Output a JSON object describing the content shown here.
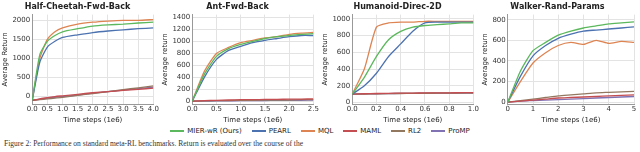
{
  "chart_data": [
    {
      "type": "line",
      "title": "Half-Cheetah-Fwd-Back",
      "x_label": "Time steps (1e6)",
      "y_label": "Average Return",
      "grid": true,
      "x": [
        0,
        0.25,
        0.5,
        0.75,
        1,
        1.5,
        2,
        2.5,
        3,
        3.5,
        4
      ],
      "xlim": [
        0,
        4
      ],
      "xticks": [
        {
          "value": 0,
          "label": "0.0"
        },
        {
          "value": 0.5,
          "label": "0.5"
        },
        {
          "value": 1,
          "label": "1.0"
        },
        {
          "value": 1.5,
          "label": "1.5"
        },
        {
          "value": 2,
          "label": "2.0"
        },
        {
          "value": 2.5,
          "label": "2.5"
        },
        {
          "value": 3,
          "label": "3.0"
        },
        {
          "value": 3.5,
          "label": "3.5"
        },
        {
          "value": 4,
          "label": "4.0"
        }
      ],
      "ylim": [
        -200,
        2150
      ],
      "yticks": [
        0,
        500,
        1000,
        1500,
        2000
      ],
      "series": [
        {
          "name": "MIER-wR (Ours)",
          "color": "#5cb85c",
          "values": [
            -100,
            1100,
            1450,
            1600,
            1700,
            1780,
            1850,
            1880,
            1900,
            1930,
            1950
          ]
        },
        {
          "name": "PEARL",
          "color": "#4c72b0",
          "values": [
            -100,
            900,
            1300,
            1450,
            1550,
            1620,
            1680,
            1720,
            1750,
            1780,
            1800
          ]
        },
        {
          "name": "MQL",
          "color": "#dd8452",
          "values": [
            -100,
            1000,
            1500,
            1700,
            1800,
            1900,
            1950,
            1980,
            2000,
            2000,
            2020
          ]
        },
        {
          "name": "MAML",
          "color": "#c44e52",
          "values": [
            -100,
            -60,
            -30,
            0,
            20,
            60,
            100,
            130,
            160,
            190,
            220
          ]
        },
        {
          "name": "RL2",
          "color": "#937860",
          "values": [
            -100,
            -80,
            -60,
            -40,
            -20,
            30,
            80,
            130,
            180,
            230,
            280
          ]
        },
        {
          "name": "ProMP",
          "color": "#8172b3",
          "values": [
            -100,
            -70,
            -40,
            -20,
            0,
            40,
            90,
            130,
            170,
            210,
            250
          ]
        }
      ]
    },
    {
      "type": "line",
      "title": "Ant-Fwd-Back",
      "x_label": "Time steps (1e6)",
      "y_label": "Average return",
      "grid": true,
      "x": [
        0,
        0.25,
        0.5,
        0.75,
        1,
        1.25,
        1.5,
        1.75,
        2,
        2.25,
        2.5
      ],
      "xlim": [
        0,
        2.5
      ],
      "xticks": [
        {
          "value": 0,
          "label": "0.0"
        },
        {
          "value": 0.5,
          "label": "0.5"
        },
        {
          "value": 1,
          "label": "1.0"
        },
        {
          "value": 1.5,
          "label": "1.5"
        },
        {
          "value": 2,
          "label": "2.0"
        },
        {
          "value": 2.5,
          "label": "2.5"
        }
      ],
      "ylim": [
        -50,
        1450
      ],
      "yticks": [
        0,
        200,
        400,
        600,
        800,
        1000,
        1200,
        1400
      ],
      "series": [
        {
          "name": "MIER-wR (Ours)",
          "color": "#5cb85c",
          "values": [
            0,
            450,
            750,
            880,
            950,
            1000,
            1050,
            1080,
            1100,
            1120,
            1130
          ]
        },
        {
          "name": "PEARL",
          "color": "#4c72b0",
          "values": [
            0,
            400,
            700,
            850,
            920,
            980,
            1020,
            1050,
            1080,
            1100,
            1100
          ]
        },
        {
          "name": "MQL",
          "color": "#dd8452",
          "values": [
            0,
            500,
            800,
            900,
            980,
            1020,
            1060,
            1080,
            1120,
            1140,
            1150
          ]
        },
        {
          "name": "MAML",
          "color": "#c44e52",
          "values": [
            0,
            10,
            15,
            20,
            25,
            25,
            30,
            30,
            35,
            35,
            40
          ]
        },
        {
          "name": "RL2",
          "color": "#937860",
          "values": [
            0,
            5,
            10,
            10,
            15,
            15,
            20,
            20,
            20,
            25,
            25
          ]
        },
        {
          "name": "ProMP",
          "color": "#8172b3",
          "values": [
            0,
            0,
            5,
            5,
            10,
            10,
            10,
            15,
            15,
            15,
            20
          ]
        }
      ]
    },
    {
      "type": "line",
      "title": "Humanoid-Direc-2D",
      "x_label": "Time steps (1e6)",
      "y_label": "Average return",
      "grid": true,
      "x": [
        0,
        0.1,
        0.2,
        0.3,
        0.4,
        0.5,
        0.6,
        0.7,
        0.8,
        0.9,
        1.0
      ],
      "xlim": [
        0,
        1
      ],
      "xticks": [
        {
          "value": 0,
          "label": "0.0"
        },
        {
          "value": 0.2,
          "label": "0.2"
        },
        {
          "value": 0.4,
          "label": "0.4"
        },
        {
          "value": 0.6,
          "label": "0.6"
        },
        {
          "value": 0.8,
          "label": "0.8"
        },
        {
          "value": 1,
          "label": "1.0"
        }
      ],
      "ylim": [
        -20,
        1050
      ],
      "yticks": [
        0,
        200,
        400,
        600,
        800,
        1000
      ],
      "series": [
        {
          "name": "MIER-wR (Ours)",
          "color": "#5cb85c",
          "values": [
            100,
            300,
            550,
            750,
            850,
            900,
            920,
            930,
            940,
            950,
            950
          ]
        },
        {
          "name": "PEARL",
          "color": "#4c72b0",
          "values": [
            100,
            200,
            350,
            550,
            700,
            850,
            950,
            960,
            960,
            960,
            960
          ]
        },
        {
          "name": "MQL",
          "color": "#dd8452",
          "values": [
            100,
            400,
            900,
            950,
            960,
            960,
            970,
            970,
            970,
            970,
            970
          ]
        },
        {
          "name": "MAML",
          "color": "#c44e52",
          "values": [
            100,
            105,
            108,
            110,
            112,
            112,
            115,
            115,
            115,
            118,
            118
          ]
        },
        {
          "name": "RL2",
          "color": "#937860",
          "values": [
            100,
            102,
            104,
            106,
            108,
            110,
            110,
            112,
            112,
            114,
            114
          ]
        },
        {
          "name": "ProMP",
          "color": "#8172b3",
          "values": [
            100,
            103,
            105,
            107,
            109,
            110,
            111,
            112,
            113,
            113,
            114
          ]
        }
      ]
    },
    {
      "type": "line",
      "title": "Walker-Rand-Params",
      "x_label": "Time steps (1e6)",
      "y_label": "Average return",
      "grid": true,
      "x": [
        0,
        0.5,
        1,
        1.5,
        2,
        2.5,
        3,
        3.5,
        4,
        4.5,
        5
      ],
      "xlim": [
        0,
        5
      ],
      "xticks": [
        0,
        1,
        2,
        3,
        4,
        5
      ],
      "ylim": [
        -20,
        850
      ],
      "yticks": [
        0,
        200,
        400,
        600,
        800
      ],
      "series": [
        {
          "name": "MIER-wR (Ours)",
          "color": "#5cb85c",
          "values": [
            0,
            300,
            500,
            580,
            650,
            690,
            720,
            740,
            760,
            770,
            780
          ]
        },
        {
          "name": "PEARL",
          "color": "#4c72b0",
          "values": [
            0,
            250,
            450,
            550,
            620,
            660,
            690,
            700,
            710,
            720,
            730
          ]
        },
        {
          "name": "MQL",
          "color": "#dd8452",
          "values": [
            0,
            200,
            380,
            480,
            550,
            580,
            560,
            600,
            570,
            590,
            580
          ]
        },
        {
          "name": "MAML",
          "color": "#c44e52",
          "values": [
            0,
            10,
            20,
            30,
            40,
            45,
            50,
            55,
            60,
            65,
            70
          ]
        },
        {
          "name": "RL2",
          "color": "#937860",
          "values": [
            0,
            15,
            30,
            45,
            60,
            70,
            80,
            90,
            95,
            100,
            105
          ]
        },
        {
          "name": "ProMP",
          "color": "#8172b3",
          "values": [
            0,
            10,
            15,
            20,
            25,
            30,
            35,
            40,
            45,
            50,
            55
          ]
        }
      ]
    }
  ],
  "legend": "bottom",
  "caption": "Figure 2: Performance on standard meta-RL benchmarks. Return is evaluated over the course of the"
}
